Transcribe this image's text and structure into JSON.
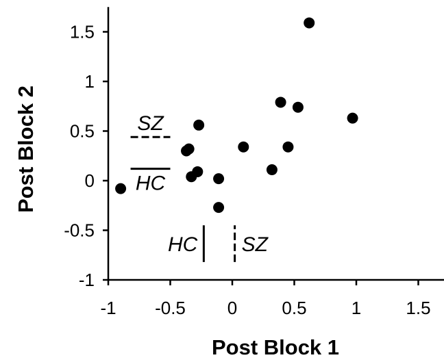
{
  "chart_data": {
    "type": "scatter",
    "title": "",
    "xlabel": "Post Block 1",
    "ylabel": "Post Block 2",
    "xlim": [
      -1,
      1.75
    ],
    "ylim": [
      -1,
      1.75
    ],
    "xticks": [
      -1,
      -0.5,
      0,
      0.5,
      1,
      1.5
    ],
    "yticks": [
      -1,
      -0.5,
      0,
      0.5,
      1,
      1.5
    ],
    "xtick_labels": [
      "-1",
      "-0.5",
      "0",
      "0.5",
      "1",
      "1.5"
    ],
    "ytick_labels": [
      "-1",
      "-0.5",
      "0",
      "0.5",
      "1",
      "1.5"
    ],
    "grid": false,
    "marker_color": "#000000",
    "points": [
      {
        "x": -0.9,
        "y": -0.08
      },
      {
        "x": -0.37,
        "y": 0.3
      },
      {
        "x": -0.35,
        "y": 0.32
      },
      {
        "x": -0.33,
        "y": 0.04
      },
      {
        "x": -0.28,
        "y": 0.09
      },
      {
        "x": -0.27,
        "y": 0.56
      },
      {
        "x": -0.11,
        "y": 0.02
      },
      {
        "x": -0.11,
        "y": -0.27
      },
      {
        "x": 0.09,
        "y": 0.34
      },
      {
        "x": 0.32,
        "y": 0.11
      },
      {
        "x": 0.39,
        "y": 0.79
      },
      {
        "x": 0.45,
        "y": 0.34
      },
      {
        "x": 0.53,
        "y": 0.74
      },
      {
        "x": 0.62,
        "y": 1.59
      },
      {
        "x": 0.97,
        "y": 0.63
      }
    ],
    "reference_lines": {
      "horizontal": [
        {
          "label": "SZ",
          "value": 0.44,
          "style": "dashed",
          "x_range": [
            -0.82,
            -0.5
          ]
        },
        {
          "label": "HC",
          "value": 0.12,
          "style": "solid",
          "x_range": [
            -0.82,
            -0.5
          ]
        }
      ],
      "vertical": [
        {
          "label": "HC",
          "value": -0.23,
          "style": "solid",
          "y_range": [
            -0.82,
            -0.45
          ]
        },
        {
          "label": "SZ",
          "value": 0.02,
          "style": "dashed",
          "y_range": [
            -0.82,
            -0.45
          ]
        }
      ]
    }
  }
}
